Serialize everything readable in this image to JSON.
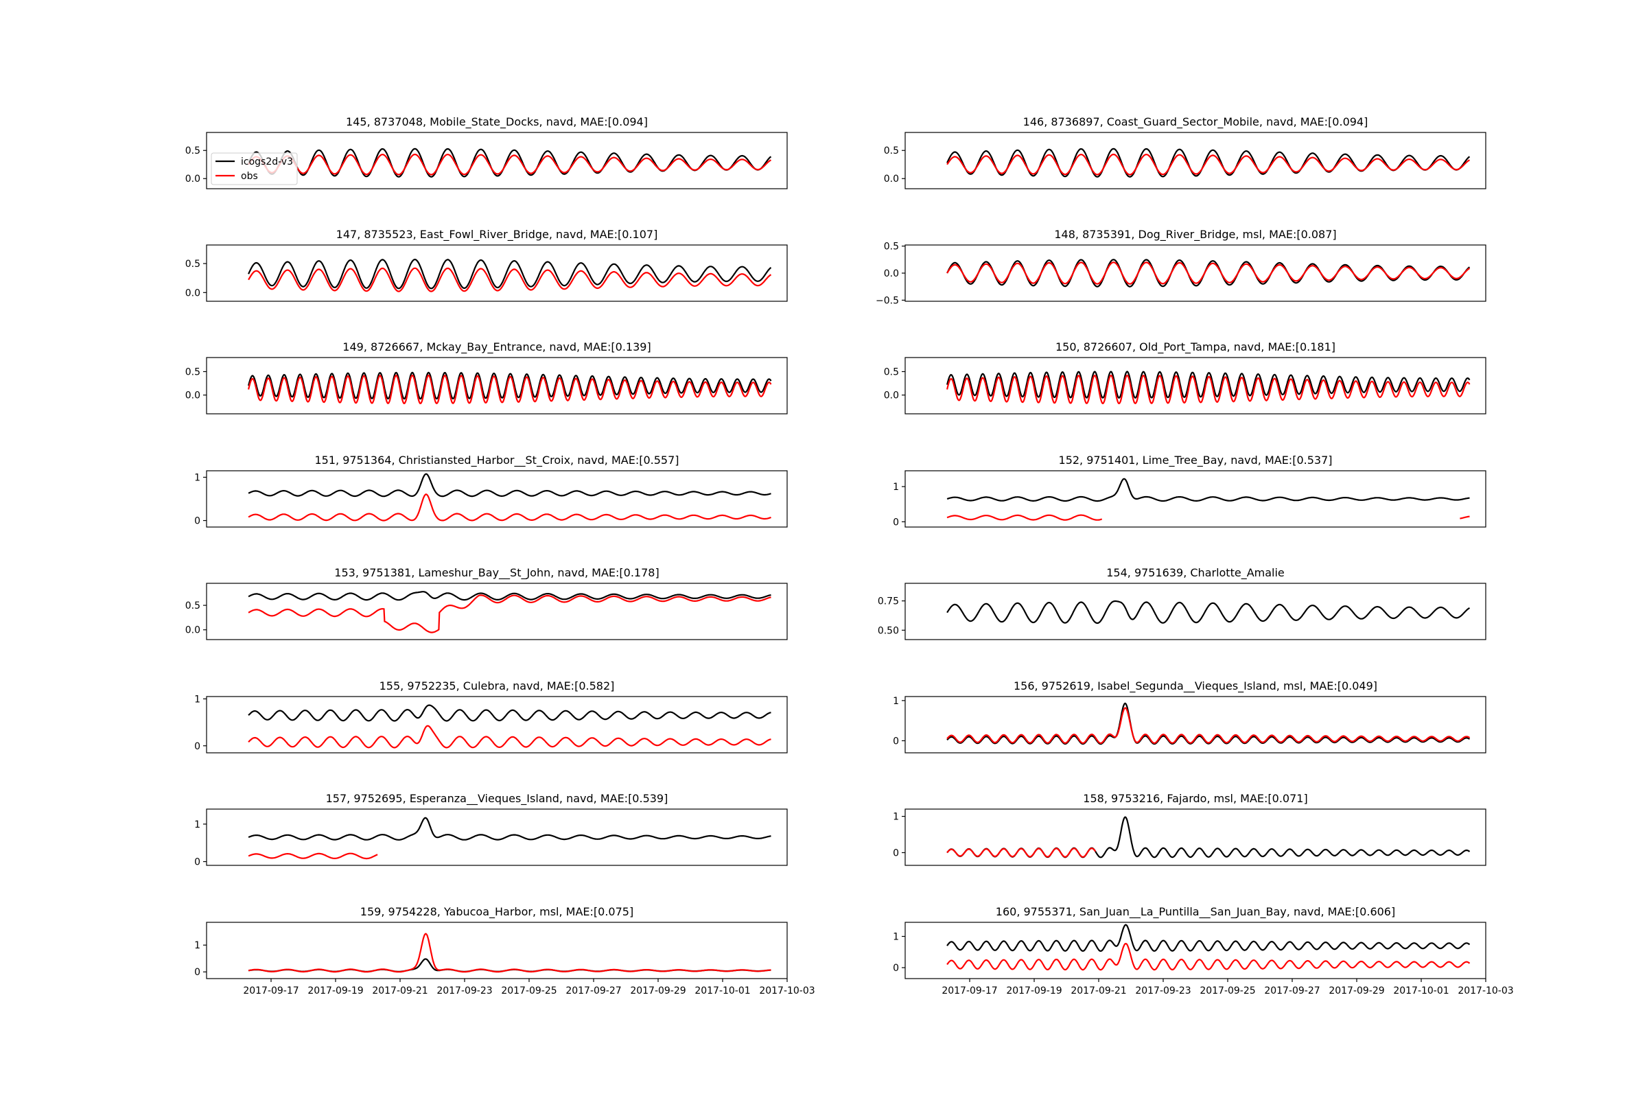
{
  "figure": {
    "legend_placement": "upper-left of first panel"
  },
  "legend": [
    {
      "label": "icogs2d-v3",
      "color": "#000000"
    },
    {
      "label": "obs",
      "color": "#ff0000"
    }
  ],
  "x_ticks": [
    "2017-09-17",
    "2017-09-19",
    "2017-09-21",
    "2017-09-23",
    "2017-09-25",
    "2017-09-27",
    "2017-09-29",
    "2017-10-01",
    "2017-10-03"
  ],
  "chart_data": [
    {
      "type": "line",
      "title": "145, 8737048, Mobile_State_Docks, navd, MAE:[0.094]",
      "yticks": [
        "0.0",
        "0.5"
      ],
      "ytick_values": [
        0,
        0.5
      ],
      "ylim": [
        -0.18,
        0.82
      ],
      "xlim": [
        "2017-09-15",
        "2017-10-03"
      ],
      "series": [
        {
          "name": "icogs2d-v3",
          "color": "#000000",
          "mean": 0.28,
          "amp": 0.25,
          "period": 1.0,
          "spike": 0,
          "segments": [
            [
              0,
              16.2
            ]
          ]
        },
        {
          "name": "obs",
          "color": "#ff0000",
          "mean": 0.25,
          "amp": 0.18,
          "period": 1.0,
          "spike": 0,
          "segments": [
            [
              0,
              16.2
            ]
          ]
        }
      ]
    },
    {
      "type": "line",
      "title": "146, 8736897, Coast_Guard_Sector_Mobile, navd, MAE:[0.094]",
      "yticks": [
        "0.0",
        "0.5"
      ],
      "ytick_values": [
        0,
        0.5
      ],
      "ylim": [
        -0.18,
        0.82
      ],
      "xlim": [
        "2017-09-15",
        "2017-10-03"
      ],
      "series": [
        {
          "name": "icogs2d-v3",
          "color": "#000000",
          "mean": 0.28,
          "amp": 0.25,
          "period": 1.0,
          "spike": 0,
          "segments": [
            [
              0,
              16.2
            ]
          ]
        },
        {
          "name": "obs",
          "color": "#ff0000",
          "mean": 0.25,
          "amp": 0.18,
          "period": 1.0,
          "spike": 0,
          "segments": [
            [
              0,
              16.2
            ]
          ]
        }
      ]
    },
    {
      "type": "line",
      "title": "147, 8735523, East_Fowl_River_Bridge, navd, MAE:[0.107]",
      "yticks": [
        "0.0",
        "0.5"
      ],
      "ytick_values": [
        0,
        0.5
      ],
      "ylim": [
        -0.15,
        0.82
      ],
      "xlim": [
        "2017-09-15",
        "2017-10-03"
      ],
      "series": [
        {
          "name": "icogs2d-v3",
          "color": "#000000",
          "mean": 0.32,
          "amp": 0.25,
          "period": 1.0,
          "spike": 0,
          "segments": [
            [
              0,
              16.2
            ]
          ]
        },
        {
          "name": "obs",
          "color": "#ff0000",
          "mean": 0.22,
          "amp": 0.2,
          "period": 1.0,
          "spike": 0,
          "segments": [
            [
              0,
              16.2
            ]
          ]
        }
      ]
    },
    {
      "type": "line",
      "title": "148, 8735391, Dog_River_Bridge, msl, MAE:[0.087]",
      "yticks": [
        "−0.5",
        "0.0",
        "0.5"
      ],
      "ytick_values": [
        -0.5,
        0,
        0.5
      ],
      "ylim": [
        -0.52,
        0.52
      ],
      "xlim": [
        "2017-09-15",
        "2017-10-03"
      ],
      "series": [
        {
          "name": "icogs2d-v3",
          "color": "#000000",
          "mean": 0.0,
          "amp": 0.25,
          "period": 1.0,
          "spike": 0,
          "segments": [
            [
              0,
              16.2
            ]
          ]
        },
        {
          "name": "obs",
          "color": "#ff0000",
          "mean": 0.0,
          "amp": 0.2,
          "period": 1.0,
          "spike": 0,
          "segments": [
            [
              0,
              16.2
            ]
          ]
        }
      ]
    },
    {
      "type": "line",
      "title": "149, 8726667, Mckay_Bay_Entrance, navd, MAE:[0.139]",
      "yticks": [
        "0.0",
        "0.5"
      ],
      "ytick_values": [
        0,
        0.5
      ],
      "ylim": [
        -0.4,
        0.8
      ],
      "xlim": [
        "2017-09-15",
        "2017-10-03"
      ],
      "series": [
        {
          "name": "icogs2d-v3",
          "color": "#000000",
          "mean": 0.2,
          "amp": 0.28,
          "period": 0.5,
          "spike": 0,
          "segments": [
            [
              0,
              16.2
            ]
          ]
        },
        {
          "name": "obs",
          "color": "#ff0000",
          "mean": 0.12,
          "amp": 0.3,
          "period": 0.5,
          "spike": 0,
          "segments": [
            [
              0,
              16.2
            ]
          ]
        }
      ]
    },
    {
      "type": "line",
      "title": "150, 8726607, Old_Port_Tampa, navd, MAE:[0.181]",
      "yticks": [
        "0.0",
        "0.5"
      ],
      "ytick_values": [
        0,
        0.5
      ],
      "ylim": [
        -0.4,
        0.8
      ],
      "xlim": [
        "2017-09-15",
        "2017-10-03"
      ],
      "series": [
        {
          "name": "icogs2d-v3",
          "color": "#000000",
          "mean": 0.22,
          "amp": 0.28,
          "period": 0.5,
          "spike": 0,
          "segments": [
            [
              0,
              16.2
            ]
          ]
        },
        {
          "name": "obs",
          "color": "#ff0000",
          "mean": 0.12,
          "amp": 0.3,
          "period": 0.5,
          "spike": 0,
          "segments": [
            [
              0,
              16.2
            ]
          ]
        }
      ]
    },
    {
      "type": "line",
      "title": "151, 9751364, Christiansted_Harbor__St_Croix, navd, MAE:[0.557]",
      "yticks": [
        "0",
        "1"
      ],
      "ytick_values": [
        0,
        1
      ],
      "ylim": [
        -0.15,
        1.15
      ],
      "xlim": [
        "2017-09-15",
        "2017-10-03"
      ],
      "series": [
        {
          "name": "icogs2d-v3",
          "color": "#000000",
          "mean": 0.63,
          "amp": 0.07,
          "period": 0.9,
          "spike": 0.38,
          "segments": [
            [
              0,
              16.2
            ]
          ]
        },
        {
          "name": "obs",
          "color": "#ff0000",
          "mean": 0.08,
          "amp": 0.08,
          "period": 0.9,
          "spike": 0.45,
          "segments": [
            [
              0,
              16.2
            ]
          ]
        }
      ]
    },
    {
      "type": "line",
      "title": "152, 9751401, Lime_Tree_Bay, navd, MAE:[0.537]",
      "yticks": [
        "0",
        "1"
      ],
      "ytick_values": [
        0,
        1
      ],
      "ylim": [
        -0.15,
        1.45
      ],
      "xlim": [
        "2017-09-15",
        "2017-10-03"
      ],
      "series": [
        {
          "name": "icogs2d-v3",
          "color": "#000000",
          "mean": 0.65,
          "amp": 0.06,
          "period": 1.0,
          "spike": 0.6,
          "segments": [
            [
              0,
              16.2
            ]
          ]
        },
        {
          "name": "obs",
          "color": "#ff0000",
          "mean": 0.12,
          "amp": 0.07,
          "period": 1.0,
          "spike": 0.3,
          "segments": [
            [
              0,
              4.8
            ],
            [
              15.9,
              16.2
            ]
          ]
        }
      ]
    },
    {
      "type": "line",
      "title": "153, 9751381, Lameshur_Bay__St_John, navd, MAE:[0.178]",
      "yticks": [
        "0.0",
        "0.5"
      ],
      "ytick_values": [
        0,
        0.5
      ],
      "ylim": [
        -0.2,
        0.95
      ],
      "xlim": [
        "2017-09-15",
        "2017-10-03"
      ],
      "series": [
        {
          "name": "icogs2d-v3",
          "color": "#000000",
          "mean": 0.68,
          "amp": 0.07,
          "period": 1.0,
          "spike": 0.12,
          "segments": [
            [
              0,
              16.2
            ]
          ]
        },
        {
          "name": "obs",
          "color": "#ff0000",
          "mean": 0.35,
          "amp": 0.08,
          "period": 1.0,
          "spike": 0,
          "drop": true,
          "segments": [
            [
              0,
              16.2
            ]
          ]
        }
      ]
    },
    {
      "type": "line",
      "title": "154, 9751639, Charlotte_Amalie",
      "yticks": [
        "0.50",
        "0.75"
      ],
      "ytick_values": [
        0.5,
        0.75
      ],
      "ylim": [
        0.42,
        0.9
      ],
      "xlim": [
        "2017-09-15",
        "2017-10-03"
      ],
      "series": [
        {
          "name": "icogs2d-v3",
          "color": "#000000",
          "mean": 0.65,
          "amp": 0.09,
          "period": 1.0,
          "spike": 0.1,
          "segments": [
            [
              0,
              16.2
            ]
          ]
        }
      ]
    },
    {
      "type": "line",
      "title": "155, 9752235, Culebra, navd, MAE:[0.582]",
      "yticks": [
        "0",
        "1"
      ],
      "ytick_values": [
        0,
        1
      ],
      "ylim": [
        -0.15,
        1.05
      ],
      "xlim": [
        "2017-09-15",
        "2017-10-03"
      ],
      "series": [
        {
          "name": "icogs2d-v3",
          "color": "#000000",
          "mean": 0.65,
          "amp": 0.12,
          "period": 0.8,
          "spike": 0.2,
          "segments": [
            [
              0,
              16.2
            ]
          ]
        },
        {
          "name": "obs",
          "color": "#ff0000",
          "mean": 0.08,
          "amp": 0.12,
          "period": 0.8,
          "spike": 0.35,
          "segments": [
            [
              0,
              16.2
            ]
          ]
        }
      ]
    },
    {
      "type": "line",
      "title": "156, 9752619, Isabel_Segunda__Vieques_Island, msl, MAE:[0.049]",
      "yticks": [
        "0",
        "1"
      ],
      "ytick_values": [
        0,
        1
      ],
      "ylim": [
        -0.3,
        1.1
      ],
      "xlim": [
        "2017-09-15",
        "2017-10-03"
      ],
      "series": [
        {
          "name": "icogs2d-v3",
          "color": "#000000",
          "mean": 0.02,
          "amp": 0.1,
          "period": 0.55,
          "spike": 0.85,
          "segments": [
            [
              0,
              16.2
            ]
          ]
        },
        {
          "name": "obs",
          "color": "#ff0000",
          "mean": 0.05,
          "amp": 0.11,
          "period": 0.55,
          "spike": 0.7,
          "segments": [
            [
              0,
              16.2
            ]
          ]
        }
      ]
    },
    {
      "type": "line",
      "title": "157, 9752695, Esperanza__Vieques_Island, navd, MAE:[0.539]",
      "yticks": [
        "0",
        "1"
      ],
      "ytick_values": [
        0,
        1
      ],
      "ylim": [
        -0.1,
        1.4
      ],
      "xlim": [
        "2017-09-15",
        "2017-10-03"
      ],
      "series": [
        {
          "name": "icogs2d-v3",
          "color": "#000000",
          "mean": 0.65,
          "amp": 0.07,
          "period": 1.0,
          "spike": 0.55,
          "segments": [
            [
              0,
              16.2
            ]
          ]
        },
        {
          "name": "obs",
          "color": "#ff0000",
          "mean": 0.15,
          "amp": 0.07,
          "period": 1.0,
          "spike": 0,
          "segments": [
            [
              0,
              4.0
            ]
          ]
        }
      ]
    },
    {
      "type": "line",
      "title": "158, 9753216, Fajardo, msl, MAE:[0.071]",
      "yticks": [
        "0",
        "1"
      ],
      "ytick_values": [
        0,
        1
      ],
      "ylim": [
        -0.35,
        1.2
      ],
      "xlim": [
        "2017-09-15",
        "2017-10-03"
      ],
      "series": [
        {
          "name": "icogs2d-v3",
          "color": "#000000",
          "mean": 0.0,
          "amp": 0.13,
          "period": 0.55,
          "spike": 0.9,
          "segments": [
            [
              0,
              16.2
            ]
          ]
        },
        {
          "name": "obs",
          "color": "#ff0000",
          "mean": 0.0,
          "amp": 0.12,
          "period": 0.55,
          "spike": 0,
          "segments": [
            [
              0,
              4.6
            ]
          ]
        }
      ]
    },
    {
      "type": "line",
      "title": "159, 9754228, Yabucoa_Harbor, msl, MAE:[0.075]",
      "yticks": [
        "0",
        "1"
      ],
      "ytick_values": [
        0,
        1
      ],
      "ylim": [
        -0.25,
        1.85
      ],
      "xlim": [
        "2017-09-15",
        "2017-10-03"
      ],
      "series": [
        {
          "name": "icogs2d-v3",
          "color": "#000000",
          "mean": 0.05,
          "amp": 0.04,
          "period": 1.0,
          "spike": 0.45,
          "segments": [
            [
              0,
              16.2
            ]
          ]
        },
        {
          "name": "obs",
          "color": "#ff0000",
          "mean": 0.05,
          "amp": 0.05,
          "period": 1.0,
          "spike": 1.4,
          "segments": [
            [
              0,
              16.2
            ]
          ]
        }
      ]
    },
    {
      "type": "line",
      "title": "160, 9755371, San_Juan__La_Puntilla__San_Juan_Bay, navd, MAE:[0.606]",
      "yticks": [
        "0",
        "1"
      ],
      "ytick_values": [
        0,
        1
      ],
      "ylim": [
        -0.35,
        1.45
      ],
      "xlim": [
        "2017-09-15",
        "2017-10-03"
      ],
      "series": [
        {
          "name": "icogs2d-v3",
          "color": "#000000",
          "mean": 0.7,
          "amp": 0.17,
          "period": 0.55,
          "spike": 0.55,
          "segments": [
            [
              0,
              16.2
            ]
          ]
        },
        {
          "name": "obs",
          "color": "#ff0000",
          "mean": 0.1,
          "amp": 0.17,
          "period": 0.55,
          "spike": 0.55,
          "segments": [
            [
              0,
              16.2
            ]
          ]
        }
      ]
    }
  ]
}
